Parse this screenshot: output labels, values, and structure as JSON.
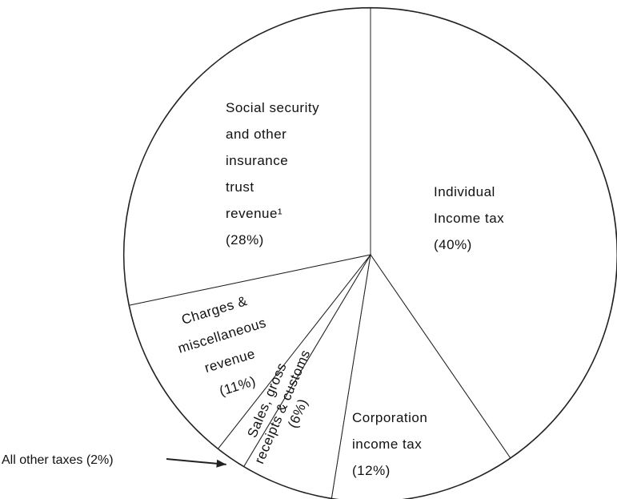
{
  "chart_data": {
    "type": "pie",
    "slices": [
      {
        "key": "individual_income_tax",
        "lines": [
          "Individual",
          "Income tax",
          "(40%)"
        ],
        "value": 40
      },
      {
        "key": "corporation_income_tax",
        "lines": [
          "Corporation",
          "income tax",
          "(12%)"
        ],
        "value": 12
      },
      {
        "key": "sales_gross_receipts_customs",
        "lines": [
          "Sales, gross",
          "receipts & customs",
          "(6%)"
        ],
        "value": 6
      },
      {
        "key": "all_other_taxes",
        "lines": [],
        "value": 2
      },
      {
        "key": "charges_misc_revenue",
        "lines": [
          "Charges &",
          "miscellaneous",
          "revenue",
          "(11%)"
        ],
        "value": 11
      },
      {
        "key": "social_security_insurance",
        "lines": [
          "Social security",
          "and other",
          "insurance",
          "trust",
          "revenue¹",
          "(28%)"
        ],
        "value": 28
      }
    ],
    "annotations": [
      {
        "text": "All other taxes (2%)",
        "points_to": "all_other_taxes"
      }
    ],
    "start_angle_deg": 0,
    "direction": "clockwise",
    "slice_fill": "#ffffff",
    "line_color": "#222222"
  }
}
